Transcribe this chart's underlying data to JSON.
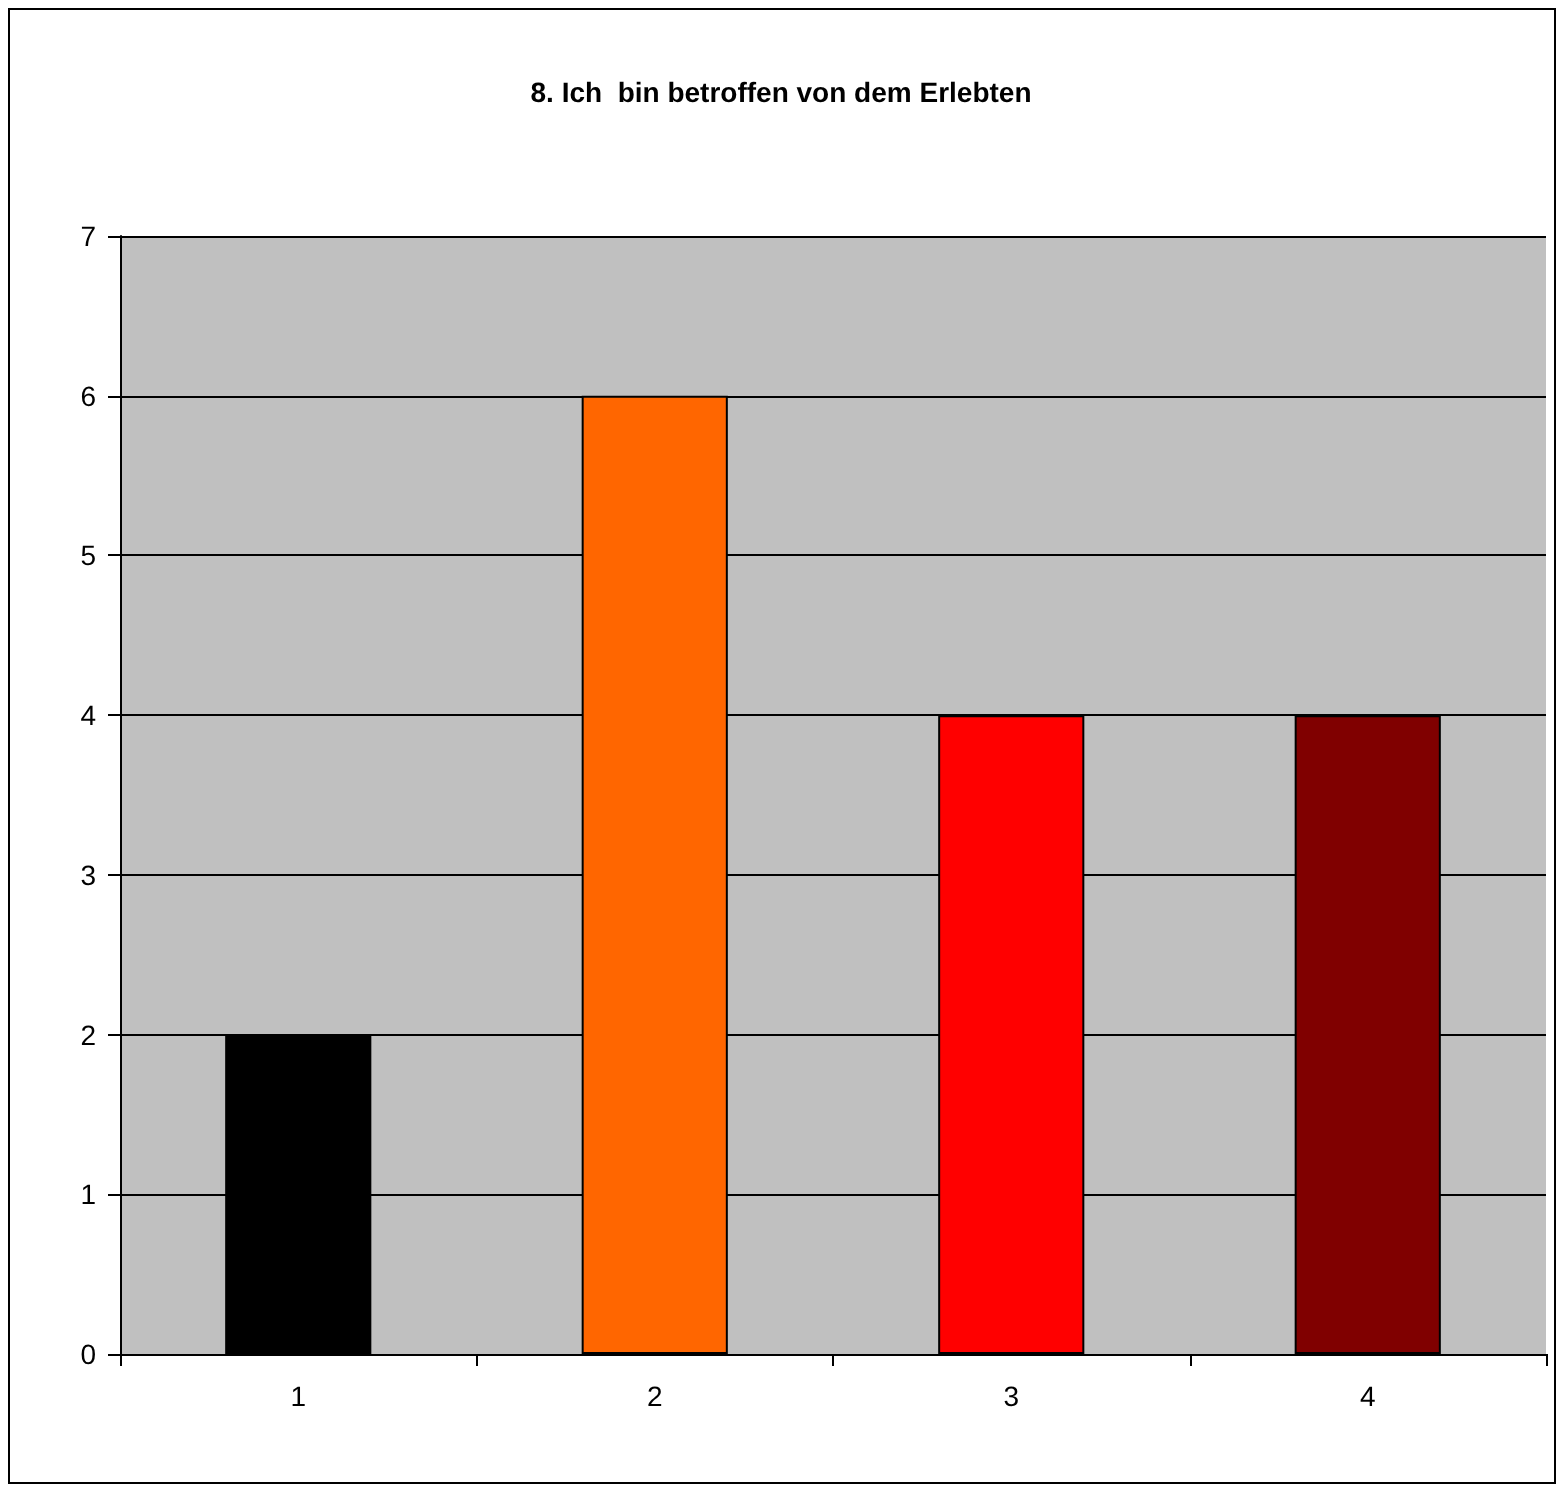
{
  "chart_data": {
    "type": "bar",
    "title": "8. Ich  bin betroffen von dem Erlebten",
    "categories": [
      "1",
      "2",
      "3",
      "4"
    ],
    "values": [
      2,
      6,
      4,
      4
    ],
    "colors": [
      "#000000",
      "#ff6600",
      "#ff0000",
      "#800000"
    ],
    "ylim": [
      0,
      7
    ],
    "yticks": [
      0,
      1,
      2,
      3,
      4,
      5,
      6,
      7
    ],
    "grid": "y"
  }
}
